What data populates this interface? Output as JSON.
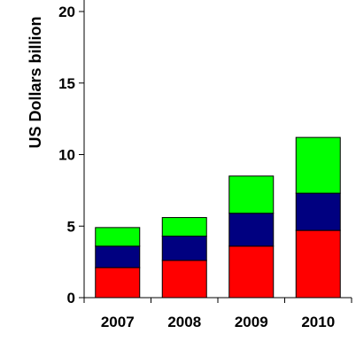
{
  "chart_data": {
    "type": "bar",
    "stacked": true,
    "categories": [
      "2007",
      "2008",
      "2009",
      "2010"
    ],
    "series": [
      {
        "values": [
          2.1,
          2.6,
          3.6,
          4.7
        ],
        "color": "#ff0000"
      },
      {
        "values": [
          1.5,
          1.7,
          2.3,
          2.6
        ],
        "color": "#000080"
      },
      {
        "values": [
          1.3,
          1.3,
          2.6,
          3.9
        ],
        "color": "#00ff00"
      }
    ],
    "ylabel": "US Dollars billion",
    "ylim": [
      0,
      20
    ],
    "yticks": [
      0,
      5,
      10,
      15,
      20
    ],
    "grid": false,
    "legend": "none"
  }
}
